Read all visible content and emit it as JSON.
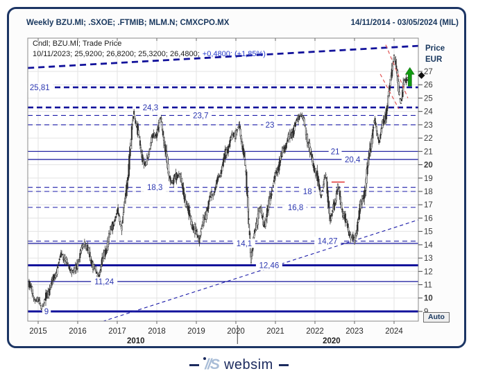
{
  "window": {
    "title": "Weekly BZU.MI; .SXOE; .FTMIB; MLM.N; CMXCPO.MX",
    "date_range": "14/11/2014 - 03/05/2024 (MIL)"
  },
  "legend": {
    "instrument": "Cndl; BZU.MI; Trade Price",
    "ohlc": "10/11/2023; 25,9200; 26,8200; 25,3200; 26,4800;",
    "change": "+0,4800; (+1,85%)"
  },
  "y_axis": {
    "title_line1": "Price",
    "title_line2": "EUR",
    "auto_button_label": "Auto"
  },
  "footer_logo": {
    "mark": "//S",
    "text": "websim"
  },
  "colors": {
    "navy_frame": "#1c3564",
    "line_blue": "#1a1aa8",
    "line_blue_bold": "#12129b",
    "label_blue": "#2b36b0",
    "candle": "#2f2f2f",
    "red_line": "#e05555",
    "green_arrow": "#119911",
    "title_navy": "#17365d"
  },
  "chart_data": {
    "type": "candlestick",
    "title": "Weekly BZU.MI Trade Price, 14/11/2014 - 03/05/2024",
    "x_tick_years": [
      2015,
      2016,
      2017,
      2018,
      2019,
      2020,
      2021,
      2022,
      2023,
      2024
    ],
    "decade_labels": [
      {
        "text": "2010",
        "year": 2017.47
      },
      {
        "text": "2020",
        "year": 2022.42
      }
    ],
    "decade_separator_year": 2020.04,
    "y_ticks": [
      9,
      10,
      11,
      12,
      13,
      14,
      15,
      16,
      17,
      18,
      19,
      20,
      21,
      22,
      23,
      24,
      25,
      26,
      27
    ],
    "y_bold_ticks": [
      10,
      20
    ],
    "ylim": [
      8.3,
      29.5
    ],
    "xlim_years": [
      2014.73,
      2024.62
    ],
    "last_price": 26.7,
    "levels": [
      {
        "label": "25,81",
        "price": 25.81,
        "style": "bold-dashed",
        "label_year": 2015.04
      },
      {
        "label": "24,3",
        "price": 24.3,
        "style": "bold-dashed",
        "label_year": 2017.84
      },
      {
        "label": "23,7",
        "price": 23.7,
        "style": "dashed",
        "label_year": 2019.11
      },
      {
        "label": "23",
        "price": 23.0,
        "style": "dashed",
        "label_year": 2020.86
      },
      {
        "label": "21",
        "price": 21.0,
        "style": "solid",
        "label_year": 2022.51
      },
      {
        "label": "20,4",
        "price": 20.4,
        "style": "solid",
        "label_year": 2022.95
      },
      {
        "label": "18,3",
        "price": 18.3,
        "style": "dashed",
        "label_year": 2017.95
      },
      {
        "label": "18",
        "price": 18.0,
        "style": "dashed",
        "label_year": 2021.81
      },
      {
        "label": "16,8",
        "price": 16.8,
        "style": "dashed",
        "label_year": 2021.51
      },
      {
        "label": "14,27",
        "price": 14.27,
        "style": "dashed",
        "label_year": 2022.32
      },
      {
        "label": "14,1",
        "price": 14.1,
        "style": "solid",
        "label_year": 2020.21
      },
      {
        "label": "12,46",
        "price": 12.46,
        "style": "bold-solid",
        "label_year": 2020.84
      },
      {
        "label": "11,24",
        "price": 11.24,
        "style": "solid",
        "label_year": 2016.67
      },
      {
        "label": "9",
        "price": 9.0,
        "style": "bold-solid",
        "label_year": 2015.21
      }
    ],
    "trendlines": [
      {
        "name": "channel-top",
        "x1": 2014.74,
        "p1": 27.26,
        "x2": 2024.62,
        "p2": 28.92,
        "style": "bold-dashed"
      },
      {
        "name": "rising-support",
        "x1": 2016.63,
        "p1": 8.25,
        "x2": 2024.65,
        "p2": 15.9,
        "style": "thin-dashed"
      }
    ],
    "red_lines": [
      {
        "x1": 2023.79,
        "p1": 29.0,
        "x2": 2024.35,
        "p2": 25.0
      },
      {
        "x1": 2023.65,
        "p1": 26.8,
        "x2": 2024.12,
        "p2": 24.2
      }
    ],
    "red_segment": {
      "x1": 2022.42,
      "x2": 2022.75,
      "price": 18.7
    },
    "green_arrow": {
      "year": 2024.4,
      "price_tip": 27.3,
      "price_base": 25.9
    },
    "price_path": [
      [
        2014.77,
        11.3
      ],
      [
        2014.88,
        10.2
      ],
      [
        2015.0,
        9.6
      ],
      [
        2015.12,
        9.15
      ],
      [
        2015.3,
        10.8
      ],
      [
        2015.47,
        12.2
      ],
      [
        2015.61,
        13.4
      ],
      [
        2015.75,
        12.3
      ],
      [
        2015.91,
        11.8
      ],
      [
        2016.05,
        13.2
      ],
      [
        2016.18,
        14.4
      ],
      [
        2016.32,
        13.0
      ],
      [
        2016.51,
        11.4
      ],
      [
        2016.7,
        13.6
      ],
      [
        2016.88,
        15.6
      ],
      [
        2017.02,
        16.3
      ],
      [
        2017.12,
        15.2
      ],
      [
        2017.25,
        18.5
      ],
      [
        2017.33,
        21.0
      ],
      [
        2017.42,
        24.2
      ],
      [
        2017.53,
        22.5
      ],
      [
        2017.61,
        21.0
      ],
      [
        2017.72,
        19.6
      ],
      [
        2017.86,
        21.7
      ],
      [
        2018.0,
        22.5
      ],
      [
        2018.11,
        23.6
      ],
      [
        2018.21,
        21.5
      ],
      [
        2018.3,
        19.3
      ],
      [
        2018.42,
        18.5
      ],
      [
        2018.56,
        19.4
      ],
      [
        2018.68,
        18.0
      ],
      [
        2018.81,
        16.5
      ],
      [
        2018.95,
        15.2
      ],
      [
        2019.07,
        14.3
      ],
      [
        2019.21,
        15.8
      ],
      [
        2019.35,
        17.5
      ],
      [
        2019.51,
        18.6
      ],
      [
        2019.65,
        19.8
      ],
      [
        2019.82,
        21.3
      ],
      [
        2019.96,
        22.3
      ],
      [
        2020.09,
        22.9
      ],
      [
        2020.21,
        21.0
      ],
      [
        2020.3,
        17.5
      ],
      [
        2020.39,
        12.8
      ],
      [
        2020.49,
        15.0
      ],
      [
        2020.61,
        16.6
      ],
      [
        2020.74,
        15.6
      ],
      [
        2020.88,
        17.8
      ],
      [
        2021.02,
        19.3
      ],
      [
        2021.14,
        20.3
      ],
      [
        2021.28,
        21.6
      ],
      [
        2021.44,
        22.6
      ],
      [
        2021.63,
        24.0
      ],
      [
        2021.75,
        22.8
      ],
      [
        2021.88,
        20.8
      ],
      [
        2022.02,
        19.5
      ],
      [
        2022.16,
        17.9
      ],
      [
        2022.28,
        19.3
      ],
      [
        2022.4,
        15.6
      ],
      [
        2022.58,
        18.2
      ],
      [
        2022.72,
        16.4
      ],
      [
        2022.86,
        15.2
      ],
      [
        2023.0,
        14.2
      ],
      [
        2023.14,
        16.5
      ],
      [
        2023.28,
        18.2
      ],
      [
        2023.39,
        21.2
      ],
      [
        2023.51,
        23.4
      ],
      [
        2023.63,
        21.9
      ],
      [
        2023.74,
        23.2
      ],
      [
        2023.82,
        24.0
      ],
      [
        2023.91,
        26.0
      ],
      [
        2024.0,
        28.3
      ],
      [
        2024.09,
        26.5
      ],
      [
        2024.18,
        24.8
      ],
      [
        2024.26,
        26.3
      ],
      [
        2024.34,
        26.7
      ]
    ]
  }
}
